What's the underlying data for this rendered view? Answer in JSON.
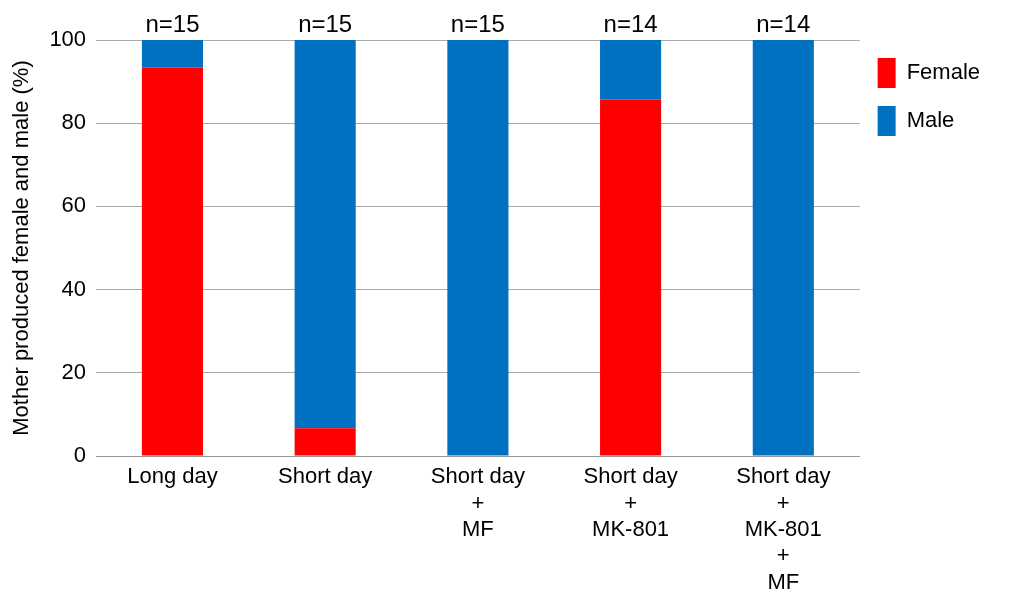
{
  "chart_data": {
    "type": "bar",
    "stacked": true,
    "ylabel": "Mother produced female and male (%)",
    "categories": [
      "Long day",
      "Short day",
      "Short day\n+\nMF",
      "Short day\n+\nMK-801",
      "Short day\n+\nMK-801\n+\nMF"
    ],
    "series": [
      {
        "name": "Female",
        "color": "#ff0000",
        "values": [
          93.3,
          6.7,
          0,
          85.7,
          0
        ]
      },
      {
        "name": "Male",
        "color": "#0070c0",
        "values": [
          6.7,
          93.3,
          100,
          14.3,
          100
        ]
      }
    ],
    "annotations": [
      {
        "text": "n=15",
        "x": "Long day",
        "y": 100
      },
      {
        "text": "n=15",
        "x": "Short day",
        "y": 100
      },
      {
        "text": "n=15",
        "x": "Short day\n+\nMF",
        "y": 100
      },
      {
        "text": "n=14",
        "x": "Short day\n+\nMK-801",
        "y": 100
      },
      {
        "text": "n=14",
        "x": "Short day\n+\nMK-801\n+\nMF",
        "y": 100
      }
    ],
    "ylim": [
      0,
      100
    ],
    "yticks": [
      0,
      20,
      40,
      60,
      80,
      100
    ],
    "grid": "y",
    "legend": "top right"
  }
}
